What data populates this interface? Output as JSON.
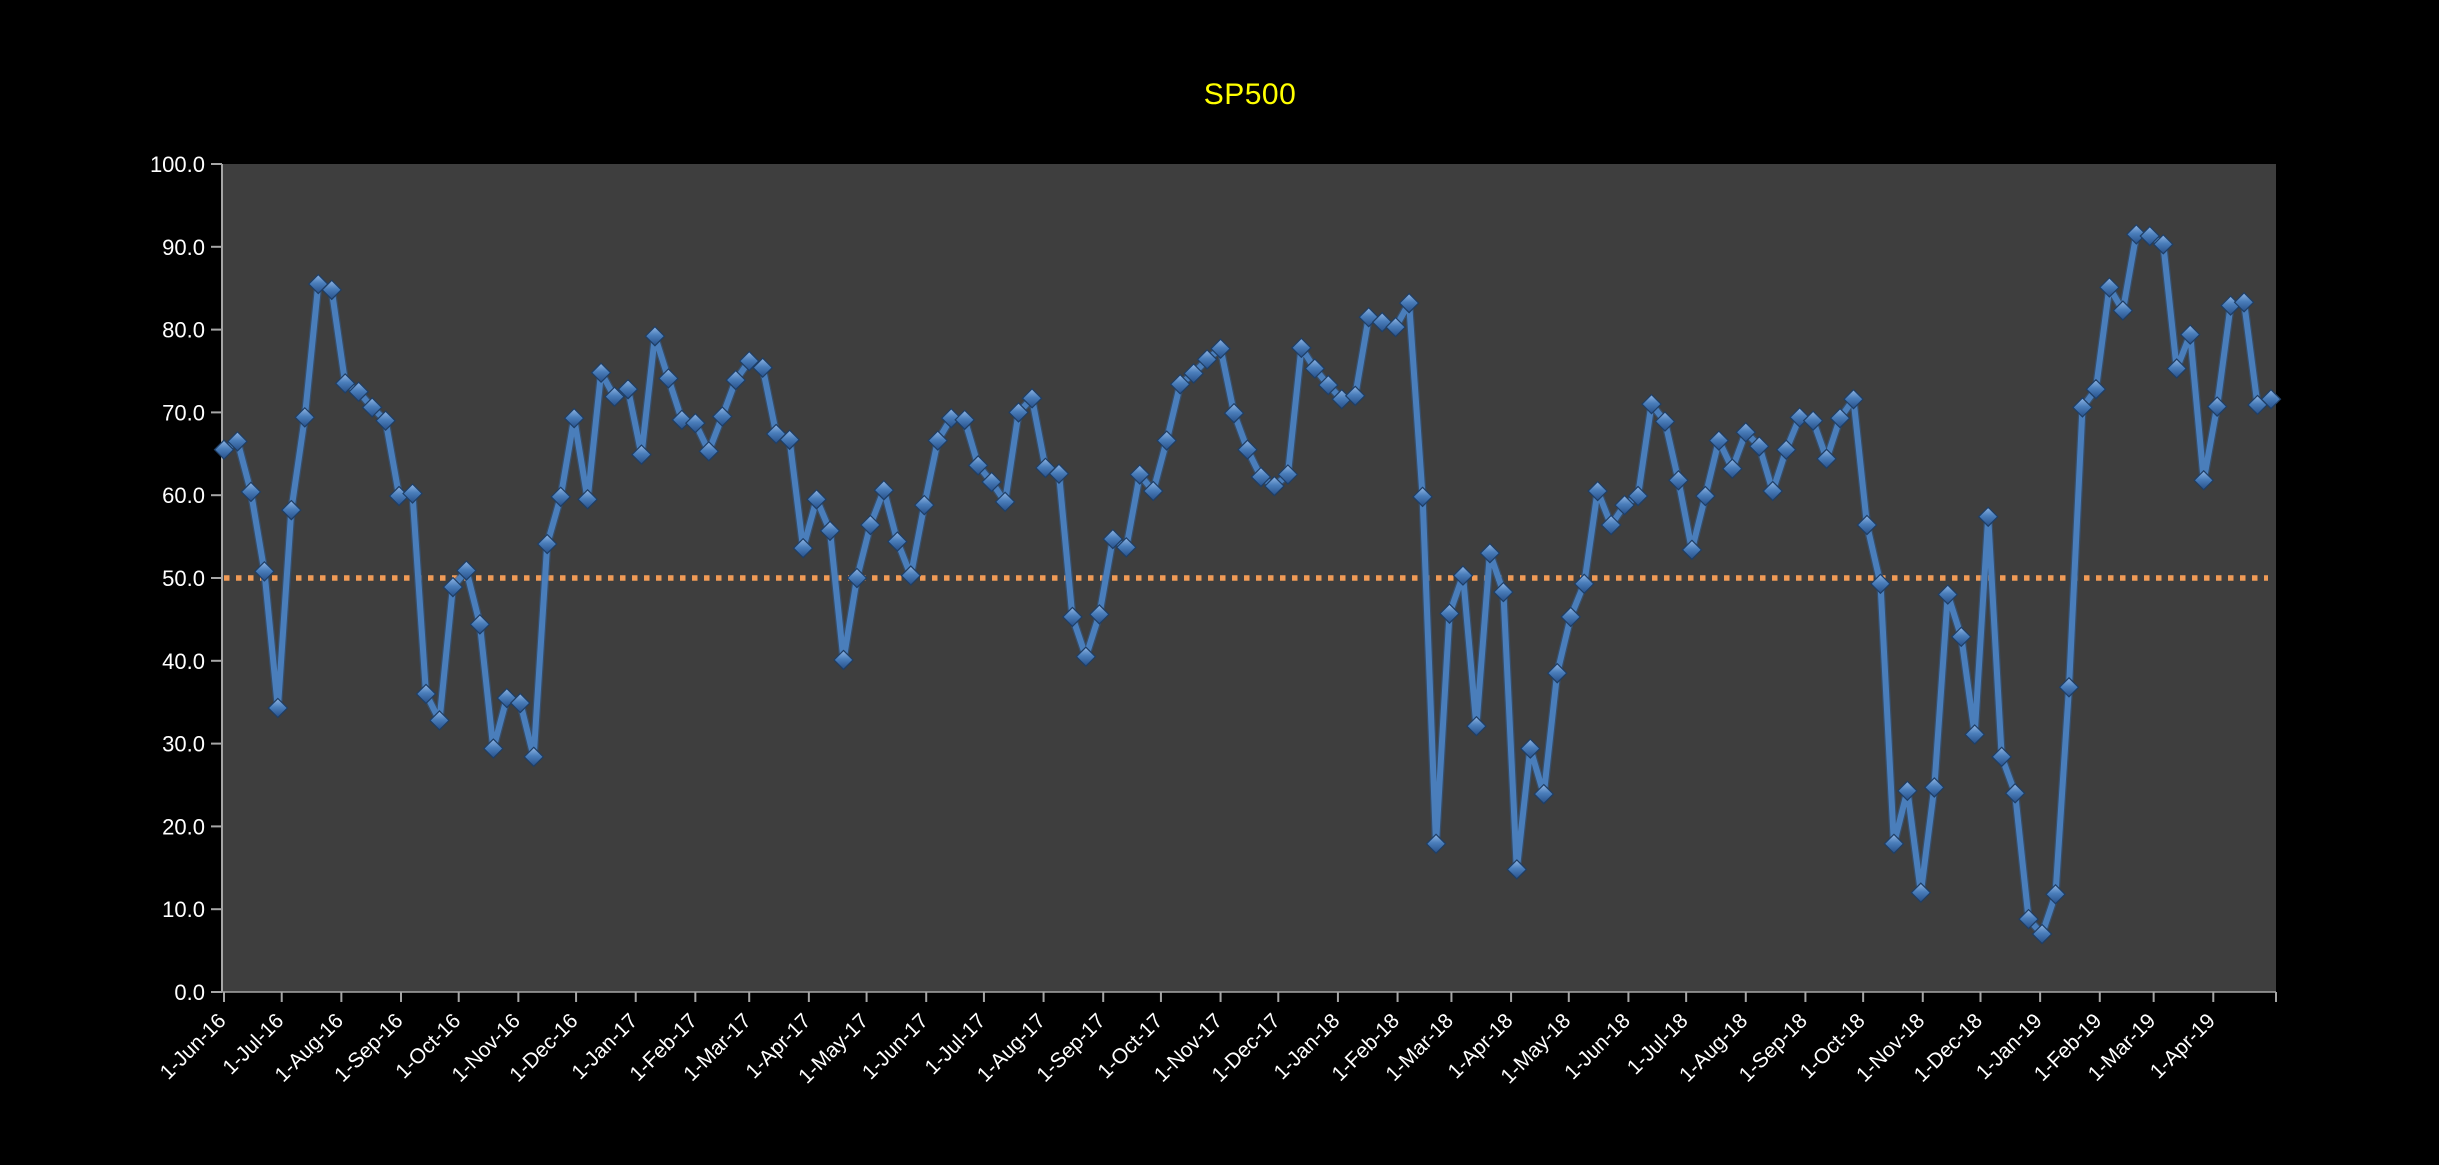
{
  "window": {
    "background": "#000000"
  },
  "chart_data": {
    "type": "line",
    "title": "SP500",
    "title_color": "#FFFF00",
    "plot_bg": "#3E3E3E",
    "axis_color": "#A6A6A6",
    "label_color": "#FFFFFF",
    "grid": false,
    "legend": false,
    "ylim": [
      0,
      100
    ],
    "y_tick_labels": [
      "100.0",
      "90.0",
      "80.0",
      "70.0",
      "60.0",
      "50.0",
      "40.0",
      "30.0",
      "20.0",
      "10.0",
      "0.0"
    ],
    "x_tick_labels": [
      "1-Jun-16",
      "1-Jul-16",
      "1-Aug-16",
      "1-Sep-16",
      "1-Oct-16",
      "1-Nov-16",
      "1-Dec-16",
      "1-Jan-17",
      "1-Feb-17",
      "1-Mar-17",
      "1-Apr-17",
      "1-May-17",
      "1-Jun-17",
      "1-Jul-17",
      "1-Aug-17",
      "1-Sep-17",
      "1-Oct-17",
      "1-Nov-17",
      "1-Dec-17",
      "1-Jan-18",
      "1-Feb-18",
      "1-Mar-18",
      "1-Apr-18",
      "1-May-18",
      "1-Jun-18",
      "1-Jul-18",
      "1-Aug-18",
      "1-Sep-18",
      "1-Oct-18",
      "1-Nov-18",
      "1-Dec-18",
      "1-Jan-19",
      "1-Feb-19",
      "1-Mar-19",
      "1-Apr-19"
    ],
    "threshold_line": {
      "value": 50.0,
      "color": "#F09B57",
      "style": "dotted"
    },
    "series": [
      {
        "name": "SP500",
        "color": "#4A7EBB",
        "marker": "diamond",
        "marker_fill_top": "#8FB4E3",
        "marker_fill_bottom": "#27508A",
        "start_date": "2016-06-01",
        "interval_days": 7,
        "values": [
          65.5,
          66.5,
          60.4,
          50.8,
          34.3,
          58.2,
          69.4,
          85.5,
          84.8,
          73.5,
          72.5,
          70.6,
          69.0,
          59.9,
          60.2,
          36.0,
          32.8,
          48.9,
          50.9,
          44.4,
          29.4,
          35.5,
          34.9,
          28.4,
          54.1,
          59.8,
          69.3,
          59.5,
          74.8,
          71.9,
          72.8,
          64.9,
          79.2,
          74.1,
          69.1,
          68.7,
          65.3,
          69.5,
          73.9,
          76.2,
          75.4,
          67.4,
          66.7,
          53.6,
          59.5,
          55.7,
          40.1,
          50.0,
          56.4,
          60.6,
          54.4,
          50.3,
          58.8,
          66.6,
          69.3,
          69.1,
          63.6,
          61.6,
          59.2,
          70.0,
          71.7,
          63.3,
          62.6,
          45.3,
          40.5,
          45.6,
          54.7,
          53.7,
          62.5,
          60.5,
          66.6,
          73.4,
          74.7,
          76.4,
          77.7,
          69.9,
          65.5,
          62.2,
          61.1,
          62.5,
          77.8,
          75.3,
          73.3,
          71.6,
          72.0,
          81.5,
          80.9,
          80.3,
          83.2,
          59.8,
          17.9,
          45.7,
          50.3,
          32.1,
          53.0,
          48.3,
          14.8,
          29.4,
          23.9,
          38.5,
          45.3,
          49.3,
          60.5,
          56.4,
          58.8,
          59.9,
          71.0,
          68.9,
          61.8,
          53.4,
          59.9,
          66.6,
          63.2,
          67.6,
          65.9,
          60.5,
          65.5,
          69.4,
          69.0,
          64.4,
          69.3,
          71.6,
          56.4,
          49.3,
          17.9,
          24.3,
          12.0,
          24.7,
          48.0,
          42.9,
          31.1,
          57.4,
          28.4,
          24.0,
          8.8,
          7.0,
          11.8,
          36.8,
          70.6,
          72.8,
          85.1,
          82.3,
          91.5,
          91.3,
          90.3,
          75.3,
          79.4,
          61.8,
          70.7,
          82.9,
          83.3,
          70.9,
          71.6
        ]
      }
    ]
  }
}
